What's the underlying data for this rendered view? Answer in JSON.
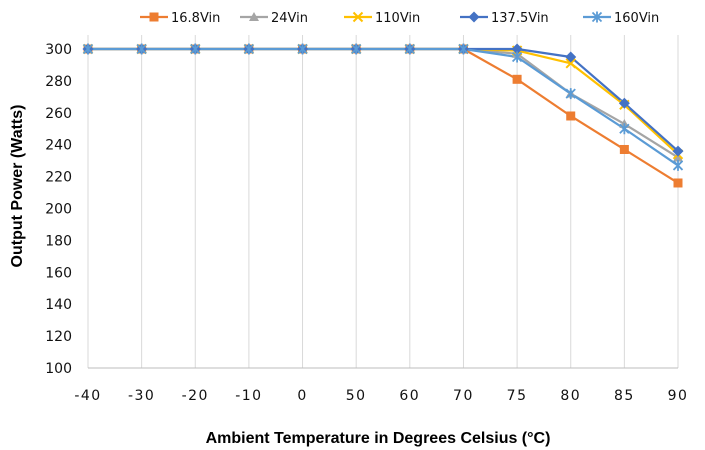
{
  "chart_data": {
    "type": "line",
    "xlabel": "Ambient Temperature in Degrees Celsius (°C)",
    "ylabel": "Output Power (Watts)",
    "categories": [
      "-40",
      "-30",
      "-20",
      "-10",
      "0",
      "50",
      "60",
      "70",
      "75",
      "80",
      "85",
      "90"
    ],
    "ylim": [
      100,
      300
    ],
    "yticks": [
      100,
      120,
      140,
      160,
      180,
      200,
      220,
      240,
      260,
      280,
      300
    ],
    "grid": "vertical",
    "legend_position": "top",
    "series": [
      {
        "name": "16.8Vin",
        "color": "#ED7D31",
        "marker": "square",
        "values": [
          300,
          300,
          300,
          300,
          300,
          300,
          300,
          300,
          281,
          258,
          237,
          216
        ]
      },
      {
        "name": "24Vin",
        "color": "#A5A5A5",
        "marker": "triangle",
        "values": [
          300,
          300,
          300,
          300,
          300,
          300,
          300,
          300,
          297,
          272,
          253,
          232
        ]
      },
      {
        "name": "110Vin",
        "color": "#FFC000",
        "marker": "x",
        "values": [
          300,
          300,
          300,
          300,
          300,
          300,
          300,
          300,
          299,
          291,
          265,
          234
        ]
      },
      {
        "name": "137.5Vin",
        "color": "#4472C4",
        "marker": "diamond",
        "values": [
          300,
          300,
          300,
          300,
          300,
          300,
          300,
          300,
          300,
          295,
          266,
          236
        ]
      },
      {
        "name": "160Vin",
        "color": "#5B9BD5",
        "marker": "star",
        "values": [
          300,
          300,
          300,
          300,
          300,
          300,
          300,
          300,
          295,
          272,
          250,
          227
        ]
      }
    ]
  }
}
